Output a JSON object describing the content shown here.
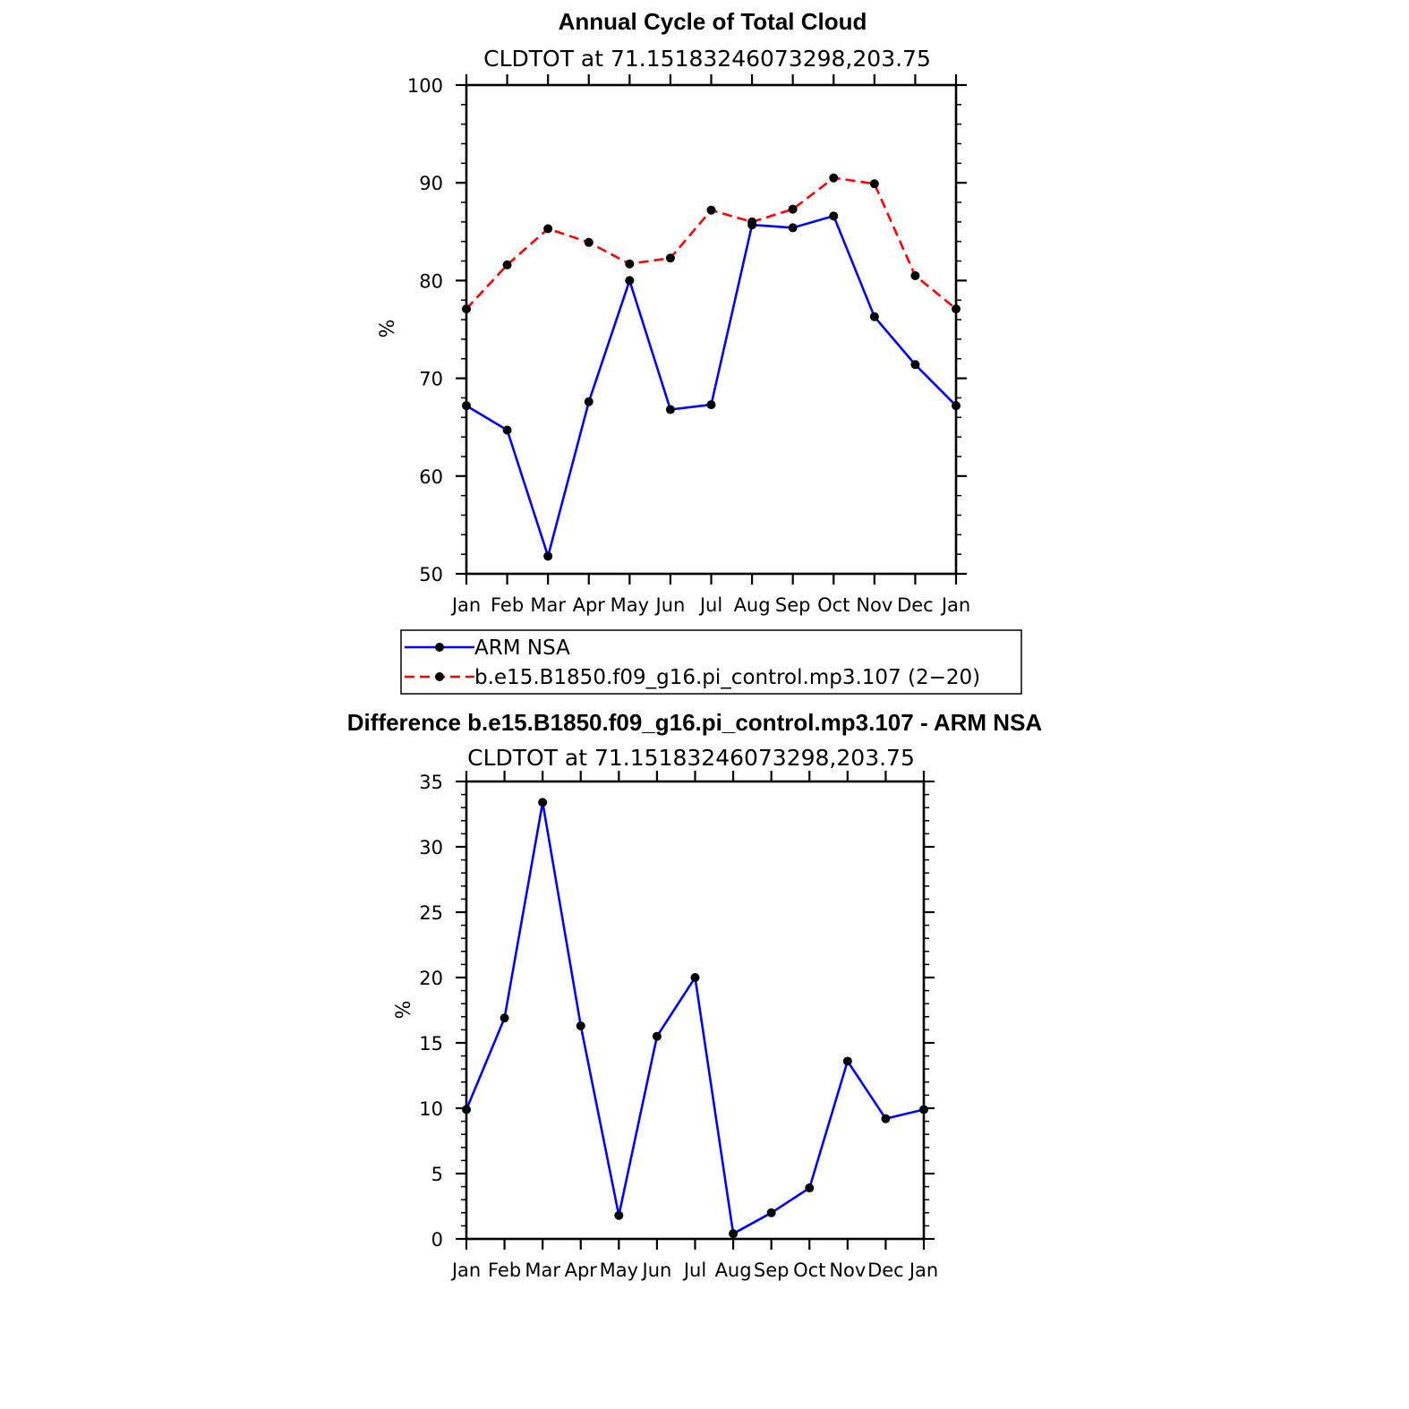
{
  "chart_data": [
    {
      "type": "line",
      "title": "Annual Cycle of Total Cloud",
      "subtitle": "CLDTOT at 71.15183246073298,203.75",
      "ylabel": "%",
      "xlabel": "",
      "categories": [
        "Jan",
        "Feb",
        "Mar",
        "Apr",
        "May",
        "Jun",
        "Jul",
        "Aug",
        "Sep",
        "Oct",
        "Nov",
        "Dec",
        "Jan"
      ],
      "ylim": [
        50,
        100
      ],
      "yticks": [
        "50",
        "60",
        "70",
        "80",
        "90",
        "100"
      ],
      "series": [
        {
          "name": "ARM NSA",
          "color": "#0000ff",
          "dash": "solid",
          "values": [
            67.2,
            64.7,
            51.8,
            67.6,
            80.0,
            66.8,
            67.3,
            85.7,
            85.4,
            86.6,
            76.3,
            71.4,
            67.2
          ]
        },
        {
          "name": "b.e15.B1850.f09_g16.pi_control.mp3.107 (2−20)",
          "color": "#ff0000",
          "dash": "dashed",
          "values": [
            77.1,
            81.6,
            85.3,
            83.9,
            81.7,
            82.3,
            87.2,
            86.0,
            87.3,
            90.5,
            89.9,
            80.5,
            77.1
          ]
        }
      ],
      "legend": "below"
    },
    {
      "type": "line",
      "title": "Difference b.e15.B1850.f09_g16.pi_control.mp3.107 - ARM NSA",
      "subtitle": "CLDTOT at 71.15183246073298,203.75",
      "ylabel": "%",
      "xlabel": "",
      "categories": [
        "Jan",
        "Feb",
        "Mar",
        "Apr",
        "May",
        "Jun",
        "Jul",
        "Aug",
        "Sep",
        "Oct",
        "Nov",
        "Dec",
        "Jan"
      ],
      "ylim": [
        0,
        35
      ],
      "yticks": [
        "0",
        "5",
        "10",
        "15",
        "20",
        "25",
        "30",
        "35"
      ],
      "series": [
        {
          "color": "#0000ff",
          "dash": "solid",
          "values": [
            9.9,
            16.9,
            33.4,
            16.3,
            1.8,
            15.5,
            20.0,
            0.4,
            2.0,
            3.9,
            13.6,
            9.2,
            9.9
          ]
        }
      ]
    }
  ]
}
